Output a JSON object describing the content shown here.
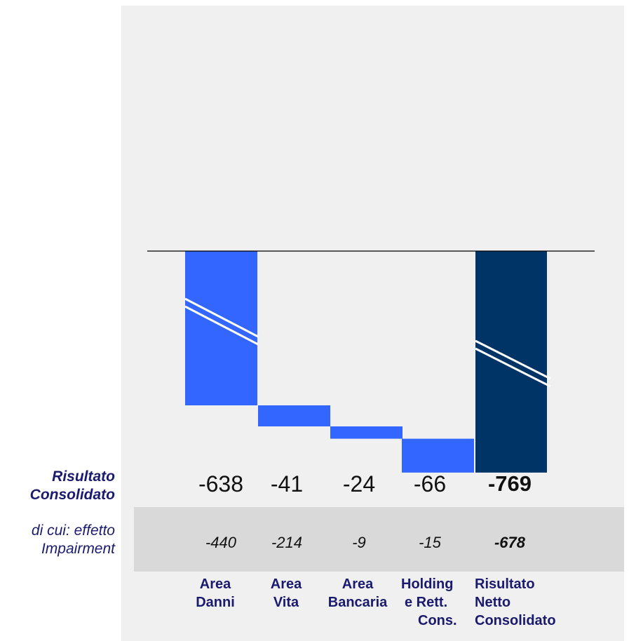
{
  "chart_data": {
    "type": "waterfall",
    "categories": [
      [
        "Area",
        "Danni"
      ],
      [
        "Area",
        "Vita"
      ],
      [
        "Area",
        "Bancaria"
      ],
      [
        "Holding",
        "e Rett.",
        "Cons."
      ],
      [
        "Risultato",
        "Netto",
        "Consolidato"
      ]
    ],
    "values": [
      -638,
      -41,
      -24,
      -66,
      -769
    ],
    "total_index": 4,
    "colors": {
      "delta": "#3366ff",
      "total": "#003366",
      "axis": "#000000",
      "break": "#ffffff"
    }
  },
  "rows": {
    "result_label": [
      "Risultato",
      "Consolidato"
    ],
    "result_values": [
      "-638",
      "-41",
      "-24",
      "-66",
      "-769"
    ],
    "impair_label": [
      "di cui: effetto",
      "Impairment"
    ],
    "impair_values": [
      "-440",
      "-214",
      "-9",
      "-15",
      "-678"
    ]
  },
  "colors": {
    "panel": "#f0f0f0",
    "band": "#d9d9d9",
    "text_label": "#1a1a6e"
  }
}
